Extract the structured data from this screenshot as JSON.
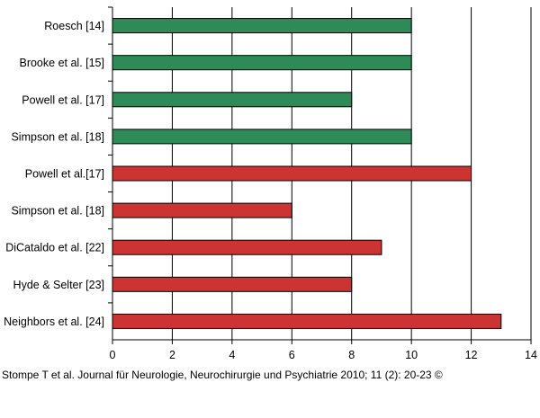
{
  "chart_data": {
    "type": "bar",
    "orientation": "horizontal",
    "categories": [
      "Roesch [14]",
      "Brooke et al. [15]",
      "Powell et al. [17]",
      "Simpson et al. [18]",
      "Powell et al.[17]",
      "Simpson et al. [18]",
      "DiCataldo et al. [22]",
      "Hyde & Selter [23]",
      "Neighbors et al. [24]"
    ],
    "values": [
      10,
      10,
      8,
      10,
      12,
      6,
      9,
      8,
      13
    ],
    "colors": [
      "#2e8b57",
      "#2e8b57",
      "#2e8b57",
      "#2e8b57",
      "#cc3333",
      "#cc3333",
      "#cc3333",
      "#cc3333",
      "#cc3333"
    ],
    "xlim": [
      0,
      14
    ],
    "xticks": [
      0,
      2,
      4,
      6,
      8,
      10,
      12,
      14
    ],
    "grid": "vertical",
    "legend": "none"
  },
  "footer": {
    "citation": "Stompe T et al. Journal für Neurologie, Neurochirurgie und Psychiatrie 2010; 11 (2): 20-23 ©"
  }
}
